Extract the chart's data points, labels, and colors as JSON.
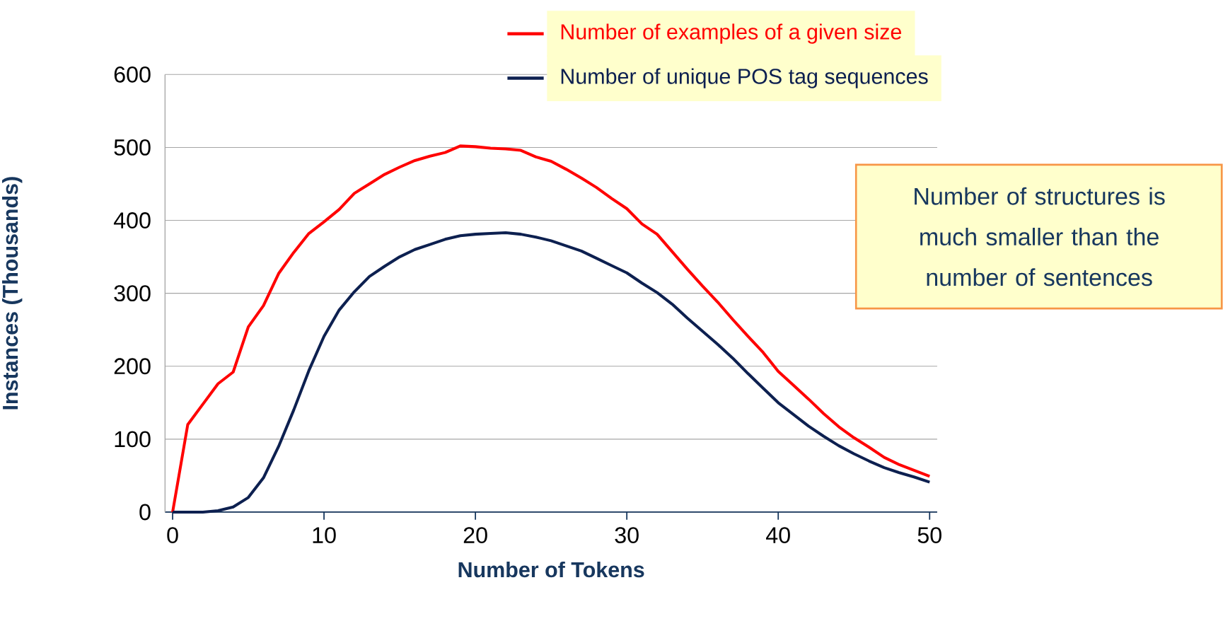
{
  "chart_data": {
    "type": "line",
    "xlabel": "Number of Tokens",
    "ylabel": "Instances (Thousands)",
    "x": [
      0,
      1,
      2,
      3,
      4,
      5,
      6,
      7,
      8,
      9,
      10,
      11,
      12,
      13,
      14,
      15,
      16,
      17,
      18,
      19,
      20,
      21,
      22,
      23,
      24,
      25,
      26,
      27,
      28,
      29,
      30,
      31,
      32,
      33,
      34,
      35,
      36,
      37,
      38,
      39,
      40,
      41,
      42,
      43,
      44,
      45,
      46,
      47,
      48,
      49,
      50
    ],
    "series": [
      {
        "name": "Number of examples of a given size",
        "color": "#ff0000",
        "values": [
          0,
          120,
          148,
          176,
          192,
          254,
          283,
          327,
          356,
          382,
          398,
          415,
          437,
          450,
          463,
          473,
          482,
          488,
          493,
          502,
          501,
          499,
          498,
          496,
          487,
          481,
          470,
          458,
          445,
          430,
          416,
          395,
          381,
          357,
          333,
          310,
          288,
          264,
          241,
          219,
          193,
          174,
          155,
          135,
          117,
          102,
          89,
          75,
          65,
          57,
          49
        ]
      },
      {
        "name": "Number of unique POS tag sequences",
        "color": "#0d2050",
        "values": [
          0,
          0,
          0,
          2,
          7,
          20,
          47,
          90,
          140,
          194,
          241,
          277,
          302,
          323,
          337,
          350,
          360,
          367,
          374,
          379,
          381,
          382,
          383,
          381,
          377,
          372,
          365,
          358,
          348,
          338,
          328,
          314,
          301,
          285,
          266,
          248,
          230,
          211,
          190,
          170,
          150,
          134,
          118,
          104,
          91,
          80,
          70,
          61,
          54,
          48,
          41
        ]
      }
    ],
    "xlim": [
      -0.5,
      50.5
    ],
    "ylim": [
      0,
      600
    ],
    "xticks": [
      0,
      10,
      20,
      30,
      40,
      50
    ],
    "yticks": [
      0,
      100,
      200,
      300,
      400,
      500,
      600
    ],
    "grid": "y",
    "legend": "top",
    "line_style": "solid",
    "marker": "none",
    "annotations": [
      "Number of structures is much smaller than the number of sentences"
    ]
  }
}
